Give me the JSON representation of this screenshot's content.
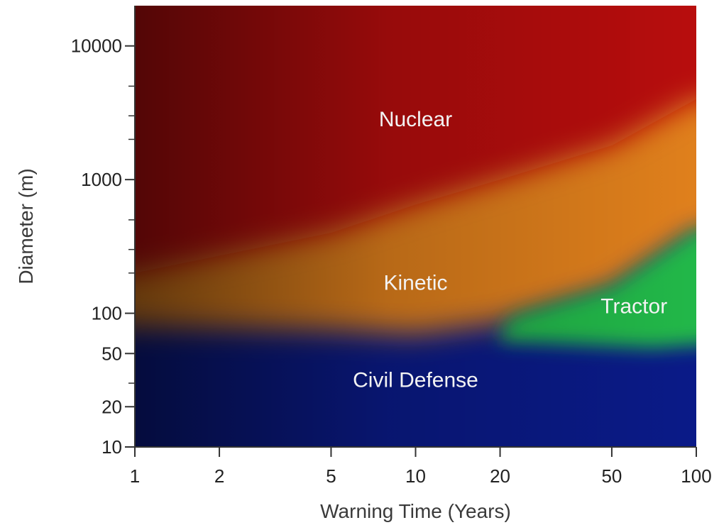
{
  "chart_data": {
    "type": "heatmap",
    "title": "",
    "xlabel": "Warning Time (Years)",
    "ylabel": "Diameter (m)",
    "x_scale": "log",
    "y_scale": "log",
    "xlim": [
      1,
      100
    ],
    "ylim": [
      10,
      20000
    ],
    "x_ticks": [
      1,
      2,
      5,
      10,
      20,
      50,
      100
    ],
    "x_tick_labels": [
      "1",
      "2",
      "5",
      "10",
      "20",
      "50",
      "100"
    ],
    "y_ticks": [
      10,
      20,
      50,
      100,
      1000,
      10000
    ],
    "y_tick_labels": [
      "10",
      "20",
      "50",
      "100",
      "1000",
      "10000"
    ],
    "y_minor_ticks": [
      20,
      30,
      50,
      200,
      300,
      500,
      2000,
      3000,
      5000
    ],
    "grid": false,
    "regions": [
      {
        "name": "Nuclear",
        "label_at": {
          "x": 10,
          "y": 2500
        },
        "color": "#b80a10"
      },
      {
        "name": "Kinetic",
        "label_at": {
          "x": 10,
          "y": 150
        },
        "color": "#e0801c"
      },
      {
        "name": "Tractor",
        "label_at": {
          "x": 60,
          "y": 100
        },
        "color": "#22b84a"
      },
      {
        "name": "Civil Defense",
        "label_at": {
          "x": 10,
          "y": 28
        },
        "color": "#0a1a88"
      }
    ],
    "boundaries": {
      "nuclear_kinetic_y": [
        {
          "x": 1,
          "y": 200
        },
        {
          "x": 5,
          "y": 400
        },
        {
          "x": 10,
          "y": 650
        },
        {
          "x": 20,
          "y": 1000
        },
        {
          "x": 50,
          "y": 1800
        },
        {
          "x": 100,
          "y": 4000
        }
      ],
      "kinetic_lower_y": [
        {
          "x": 1,
          "y": 80
        },
        {
          "x": 5,
          "y": 75
        },
        {
          "x": 10,
          "y": 70
        },
        {
          "x": 20,
          "y": 85
        },
        {
          "x": 50,
          "y": 150
        },
        {
          "x": 100,
          "y": 400
        }
      ],
      "tractor_start_x": 20
    }
  }
}
